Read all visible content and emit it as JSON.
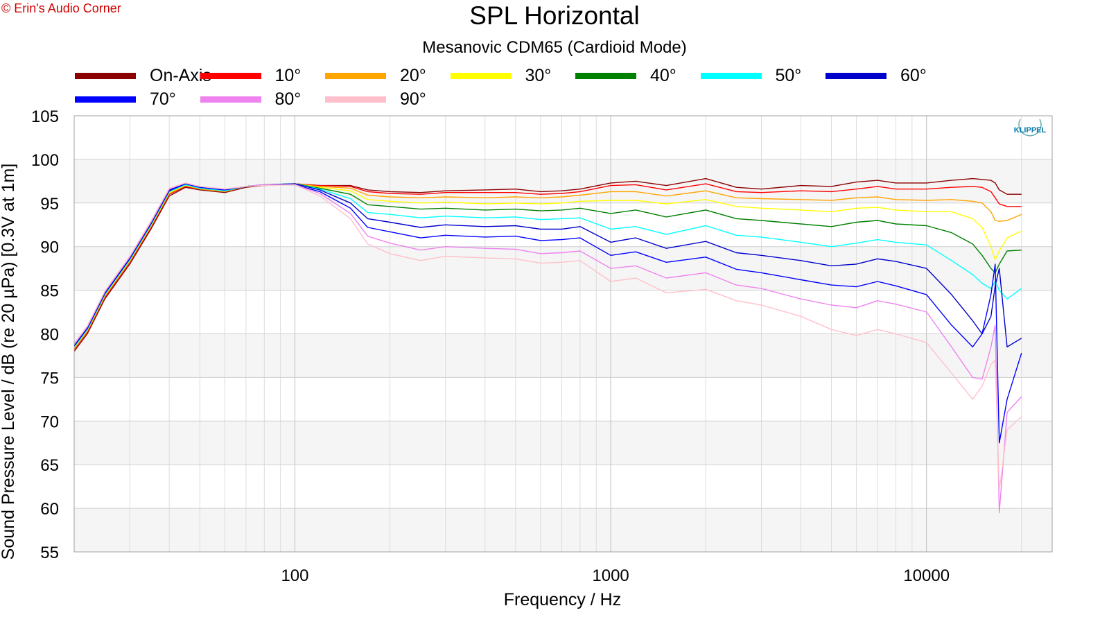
{
  "copyright": "© Erin's Audio Corner",
  "logo_text": "KLIPPEL",
  "chart_data": {
    "type": "line",
    "title": "SPL Horizontal",
    "subtitle": "Mesanovic CDM65 (Cardioid Mode)",
    "xlabel": "Frequency / Hz",
    "ylabel": "Sound Pressure Level / dB (re 20 µPa)  [0.3V at 1m]",
    "x_scale": "log",
    "xlim": [
      20,
      25000
    ],
    "ylim": [
      55,
      105
    ],
    "x_ticks": [
      100,
      1000,
      10000
    ],
    "x_tick_labels": [
      "100",
      "1000",
      "10000"
    ],
    "y_ticks": [
      55,
      60,
      65,
      70,
      75,
      80,
      85,
      90,
      95,
      100,
      105
    ],
    "grid": true,
    "legend_position": "top",
    "x": [
      20,
      22,
      25,
      30,
      35,
      40,
      45,
      50,
      60,
      70,
      80,
      100,
      120,
      150,
      170,
      200,
      250,
      300,
      400,
      500,
      600,
      700,
      800,
      1000,
      1200,
      1500,
      2000,
      2500,
      3000,
      4000,
      5000,
      6000,
      7000,
      8000,
      10000,
      12000,
      14000,
      15000,
      16000,
      16500,
      17000,
      18000,
      20000
    ],
    "series": [
      {
        "name": "On-Axis",
        "color": "#8b0000",
        "values": [
          78,
          80,
          84,
          88,
          92,
          95.8,
          96.8,
          96.5,
          96.2,
          96.8,
          97.0,
          97.2,
          97.0,
          97.0,
          96.5,
          96.3,
          96.2,
          96.4,
          96.5,
          96.6,
          96.3,
          96.4,
          96.6,
          97.3,
          97.5,
          97.0,
          97.8,
          96.8,
          96.6,
          97.0,
          96.9,
          97.4,
          97.6,
          97.3,
          97.3,
          97.6,
          97.8,
          97.7,
          97.6,
          97.3,
          96.5,
          96.0,
          96.0
        ]
      },
      {
        "name": "10°",
        "color": "#ff0000",
        "values": [
          78.2,
          80.2,
          84.2,
          88.2,
          92.2,
          96.0,
          96.9,
          96.6,
          96.3,
          96.9,
          97.1,
          97.2,
          97.0,
          96.9,
          96.3,
          96.1,
          96.0,
          96.2,
          96.2,
          96.2,
          96.0,
          96.1,
          96.3,
          97.0,
          97.1,
          96.5,
          97.2,
          96.3,
          96.2,
          96.4,
          96.3,
          96.6,
          96.9,
          96.6,
          96.6,
          96.8,
          96.9,
          96.8,
          96.3,
          95.6,
          94.9,
          94.6,
          94.6
        ]
      },
      {
        "name": "20°",
        "color": "#ffa500",
        "values": [
          78.3,
          80.3,
          84.3,
          88.3,
          92.3,
          96.1,
          97.0,
          96.6,
          96.3,
          96.9,
          97.1,
          97.2,
          96.9,
          96.7,
          95.9,
          95.7,
          95.6,
          95.7,
          95.6,
          95.7,
          95.6,
          95.7,
          95.9,
          96.3,
          96.3,
          95.8,
          96.4,
          95.6,
          95.5,
          95.4,
          95.3,
          95.6,
          95.7,
          95.4,
          95.3,
          95.4,
          95.2,
          95.0,
          94.0,
          93.0,
          92.9,
          93.0,
          93.7
        ]
      },
      {
        "name": "30°",
        "color": "#ffff00",
        "values": [
          78.4,
          80.4,
          84.4,
          88.4,
          92.4,
          96.2,
          97.0,
          96.7,
          96.4,
          96.9,
          97.1,
          97.2,
          96.8,
          96.4,
          95.4,
          95.2,
          95.0,
          95.1,
          94.9,
          95.0,
          94.9,
          95.0,
          95.2,
          95.3,
          95.3,
          94.9,
          95.4,
          94.6,
          94.4,
          94.2,
          94.0,
          94.4,
          94.5,
          94.2,
          94.0,
          94.0,
          93.2,
          92.2,
          90.0,
          88.5,
          89.5,
          91.0,
          91.8
        ]
      },
      {
        "name": "40°",
        "color": "#008000",
        "values": [
          78.5,
          80.5,
          84.5,
          88.5,
          92.5,
          96.3,
          97.1,
          96.7,
          96.4,
          96.9,
          97.1,
          97.2,
          96.7,
          96.0,
          94.8,
          94.6,
          94.3,
          94.4,
          94.2,
          94.3,
          94.1,
          94.2,
          94.4,
          93.8,
          94.2,
          93.4,
          94.2,
          93.2,
          93.0,
          92.6,
          92.3,
          92.8,
          93.0,
          92.6,
          92.4,
          91.6,
          90.3,
          89.0,
          87.5,
          87.0,
          88.0,
          89.5,
          89.6
        ]
      },
      {
        "name": "50°",
        "color": "#00ffff",
        "values": [
          78.5,
          80.5,
          84.5,
          88.5,
          92.5,
          96.3,
          97.1,
          96.7,
          96.4,
          96.9,
          97.1,
          97.2,
          96.6,
          95.5,
          93.9,
          93.7,
          93.3,
          93.5,
          93.3,
          93.4,
          93.1,
          93.2,
          93.3,
          92.0,
          92.3,
          91.4,
          92.4,
          91.3,
          91.1,
          90.5,
          90.0,
          90.4,
          90.8,
          90.5,
          90.2,
          88.4,
          86.8,
          85.8,
          85.2,
          86.0,
          85.0,
          84.0,
          85.2
        ]
      },
      {
        "name": "60°",
        "color": "#0000cd",
        "values": [
          78.6,
          80.6,
          84.6,
          88.6,
          92.6,
          96.4,
          97.2,
          96.8,
          96.5,
          96.9,
          97.1,
          97.2,
          96.5,
          95.0,
          93.2,
          92.8,
          92.2,
          92.5,
          92.3,
          92.4,
          92.0,
          92.0,
          92.3,
          90.5,
          91.0,
          89.8,
          90.6,
          89.3,
          89.0,
          88.4,
          87.8,
          88.0,
          88.6,
          88.3,
          87.5,
          84.5,
          81.5,
          80.0,
          82.0,
          85.5,
          87.5,
          78.5,
          79.5
        ]
      },
      {
        "name": "70°",
        "color": "#0000ff",
        "values": [
          78.7,
          80.7,
          84.7,
          88.7,
          92.7,
          96.5,
          97.2,
          96.8,
          96.5,
          96.9,
          97.1,
          97.1,
          96.3,
          94.4,
          92.2,
          91.7,
          91.0,
          91.3,
          91.1,
          91.2,
          90.7,
          90.8,
          91.0,
          89.0,
          89.4,
          88.2,
          88.8,
          87.4,
          87.0,
          86.2,
          85.6,
          85.4,
          86.0,
          85.5,
          84.5,
          81.0,
          78.5,
          80.0,
          84.5,
          88.0,
          67.5,
          72.5,
          77.8
        ]
      },
      {
        "name": "80°",
        "color": "#ee82ee",
        "values": [
          78.8,
          80.8,
          84.8,
          88.8,
          92.8,
          96.6,
          97.3,
          96.9,
          96.6,
          96.9,
          97.1,
          97.1,
          96.1,
          93.8,
          91.2,
          90.4,
          89.6,
          90.0,
          89.8,
          89.7,
          89.2,
          89.3,
          89.5,
          87.5,
          87.8,
          86.4,
          87.0,
          85.6,
          85.2,
          84.0,
          83.3,
          83.0,
          83.8,
          83.4,
          82.5,
          78.5,
          75.0,
          74.8,
          78.5,
          81.0,
          59.5,
          71.0,
          72.8
        ]
      },
      {
        "name": "90°",
        "color": "#ffc0cb",
        "values": [
          78.9,
          80.9,
          84.9,
          88.9,
          92.9,
          96.7,
          97.3,
          96.9,
          96.6,
          96.9,
          97.0,
          97.1,
          95.8,
          93.2,
          90.3,
          89.2,
          88.4,
          88.9,
          88.7,
          88.6,
          88.1,
          88.2,
          88.4,
          86.0,
          86.4,
          84.7,
          85.1,
          83.8,
          83.3,
          82.0,
          80.5,
          79.8,
          80.5,
          80.0,
          79.0,
          75.5,
          72.5,
          74.0,
          76.5,
          77.0,
          62.0,
          69.0,
          70.5
        ]
      }
    ]
  }
}
